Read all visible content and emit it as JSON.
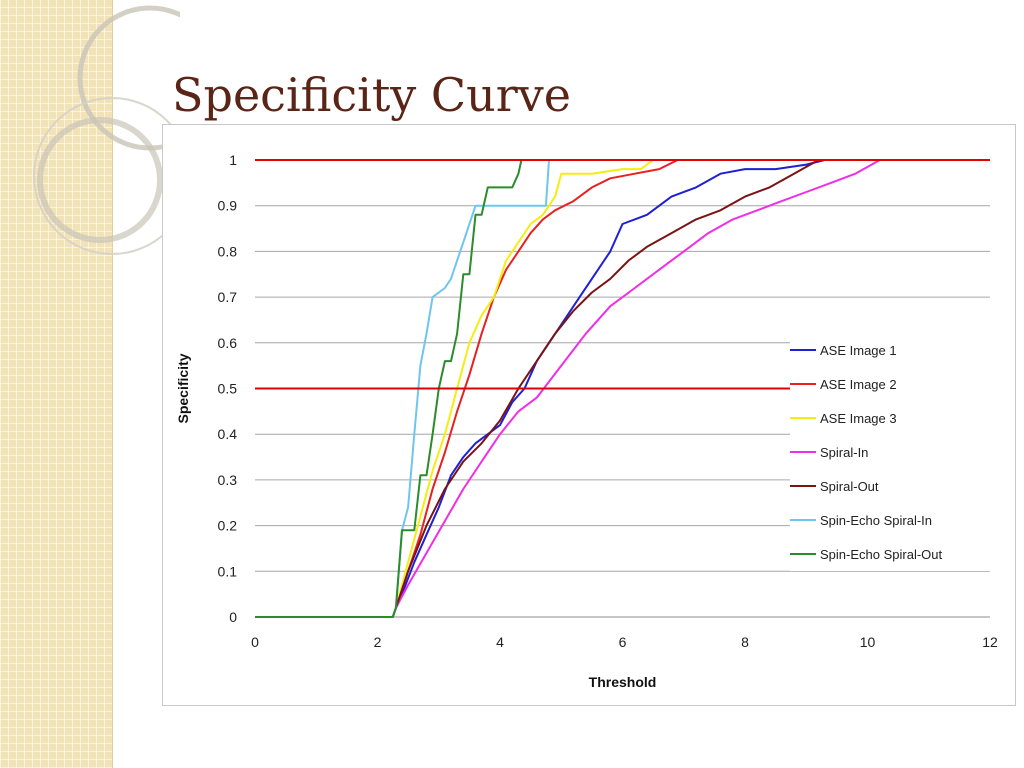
{
  "slide": {
    "title": "Specificity Curve"
  },
  "chart_data": {
    "type": "line",
    "title": "",
    "xlabel": "Threshold",
    "ylabel": "Specificity",
    "xlim": [
      0,
      12
    ],
    "ylim": [
      0,
      1
    ],
    "xticks": [
      0,
      2,
      4,
      6,
      8,
      10,
      12
    ],
    "yticks": [
      0,
      0.1,
      0.2,
      0.3,
      0.4,
      0.5,
      0.6,
      0.7,
      0.8,
      0.9,
      1
    ],
    "grid": true,
    "legend_position": "right",
    "reference_lines": [
      {
        "y": 1,
        "color": "#e00000"
      },
      {
        "y": 0.5,
        "color": "#e00000"
      }
    ],
    "series": [
      {
        "name": "ASE Image 1",
        "color": "#1f1fd6",
        "x": [
          0,
          2.25,
          2.3,
          2.4,
          2.6,
          2.8,
          3.0,
          3.2,
          3.4,
          3.6,
          3.8,
          4.0,
          4.2,
          4.4,
          4.6,
          4.8,
          5.0,
          5.3,
          5.6,
          5.8,
          6.0,
          6.4,
          6.8,
          7.2,
          7.6,
          8.0,
          8.5,
          9.0,
          9.3
        ],
        "y": [
          0,
          0,
          0.02,
          0.05,
          0.12,
          0.18,
          0.24,
          0.31,
          0.35,
          0.38,
          0.4,
          0.42,
          0.47,
          0.5,
          0.56,
          0.6,
          0.64,
          0.7,
          0.76,
          0.8,
          0.86,
          0.88,
          0.92,
          0.94,
          0.97,
          0.98,
          0.98,
          0.99,
          1.0
        ]
      },
      {
        "name": "ASE Image 2",
        "color": "#e82020",
        "x": [
          0,
          2.25,
          2.3,
          2.5,
          2.7,
          2.9,
          3.1,
          3.3,
          3.5,
          3.7,
          3.9,
          4.1,
          4.3,
          4.5,
          4.7,
          4.9,
          5.2,
          5.5,
          5.8,
          6.2,
          6.6,
          6.9
        ],
        "y": [
          0,
          0,
          0.02,
          0.1,
          0.18,
          0.28,
          0.36,
          0.45,
          0.53,
          0.62,
          0.7,
          0.76,
          0.8,
          0.84,
          0.87,
          0.89,
          0.91,
          0.94,
          0.96,
          0.97,
          0.98,
          1.0
        ]
      },
      {
        "name": "ASE Image 3",
        "color": "#f5ed10",
        "x": [
          0,
          2.25,
          2.3,
          2.5,
          2.7,
          2.9,
          3.1,
          3.3,
          3.5,
          3.7,
          3.9,
          4.1,
          4.3,
          4.5,
          4.7,
          4.9,
          5.0,
          5.5,
          6.0,
          6.3,
          6.5
        ],
        "y": [
          0,
          0,
          0.02,
          0.12,
          0.22,
          0.32,
          0.4,
          0.5,
          0.6,
          0.66,
          0.7,
          0.78,
          0.82,
          0.86,
          0.88,
          0.92,
          0.97,
          0.97,
          0.98,
          0.98,
          1.0
        ]
      },
      {
        "name": "Spiral-In",
        "color": "#ee2ee8",
        "x": [
          0,
          2.25,
          2.3,
          2.5,
          2.8,
          3.1,
          3.4,
          3.7,
          4.0,
          4.3,
          4.6,
          5.0,
          5.4,
          5.8,
          6.2,
          6.6,
          7.0,
          7.4,
          7.8,
          8.2,
          8.6,
          9.0,
          9.4,
          9.8,
          10.2
        ],
        "y": [
          0,
          0,
          0.02,
          0.07,
          0.14,
          0.21,
          0.28,
          0.34,
          0.4,
          0.45,
          0.48,
          0.55,
          0.62,
          0.68,
          0.72,
          0.76,
          0.8,
          0.84,
          0.87,
          0.89,
          0.91,
          0.93,
          0.95,
          0.97,
          1.0
        ]
      },
      {
        "name": "Spiral-Out",
        "color": "#7a1414",
        "x": [
          0,
          2.25,
          2.3,
          2.5,
          2.8,
          3.1,
          3.4,
          3.7,
          4.0,
          4.3,
          4.6,
          4.9,
          5.2,
          5.5,
          5.8,
          6.1,
          6.4,
          6.8,
          7.2,
          7.6,
          8.0,
          8.4,
          8.8,
          9.2
        ],
        "y": [
          0,
          0,
          0.02,
          0.1,
          0.2,
          0.28,
          0.34,
          0.38,
          0.43,
          0.5,
          0.56,
          0.62,
          0.67,
          0.71,
          0.74,
          0.78,
          0.81,
          0.84,
          0.87,
          0.89,
          0.92,
          0.94,
          0.97,
          1.0
        ]
      },
      {
        "name": "Spin-Echo Spiral-In",
        "color": "#6ec6ee",
        "x": [
          0,
          2.25,
          2.3,
          2.4,
          2.5,
          2.6,
          2.7,
          2.8,
          2.9,
          3.1,
          3.2,
          3.3,
          3.4,
          3.5,
          3.6,
          3.8,
          4.0,
          4.2,
          4.4,
          4.6,
          4.75,
          4.8
        ],
        "y": [
          0,
          0,
          0.02,
          0.19,
          0.24,
          0.4,
          0.55,
          0.62,
          0.7,
          0.72,
          0.74,
          0.78,
          0.82,
          0.86,
          0.9,
          0.9,
          0.9,
          0.9,
          0.9,
          0.9,
          0.9,
          1.0
        ]
      },
      {
        "name": "Spin-Echo Spiral-Out",
        "color": "#2a8c2a",
        "x": [
          0,
          2.25,
          2.3,
          2.4,
          2.5,
          2.6,
          2.7,
          2.8,
          2.9,
          3.0,
          3.1,
          3.2,
          3.3,
          3.4,
          3.5,
          3.6,
          3.7,
          3.8,
          4.0,
          4.2,
          4.3,
          4.35
        ],
        "y": [
          0,
          0,
          0.02,
          0.19,
          0.19,
          0.19,
          0.31,
          0.31,
          0.4,
          0.5,
          0.56,
          0.56,
          0.62,
          0.75,
          0.75,
          0.88,
          0.88,
          0.94,
          0.94,
          0.94,
          0.97,
          1.0
        ]
      }
    ]
  }
}
